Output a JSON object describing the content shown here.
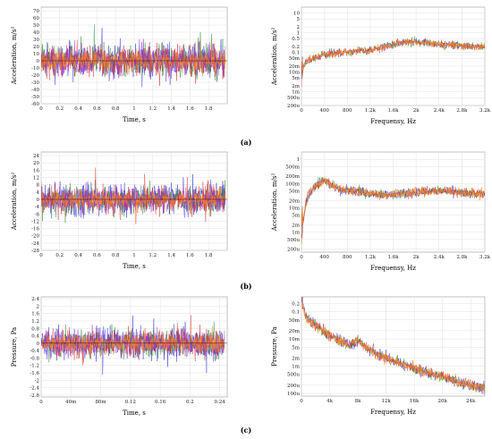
{
  "chart_data": [
    {
      "panel": "a",
      "type": "line",
      "signal": "time",
      "xlabel": "Time, s",
      "ylabel": "Acceleration, m/s²",
      "xlim": [
        0,
        2.0
      ],
      "ylim": [
        -60,
        75
      ],
      "xticks": [
        "0",
        "0.2",
        "0.4",
        "0.6",
        "0.8",
        "1",
        "1.2",
        "1.4",
        "1.6",
        "1.8"
      ],
      "yticks": [
        "70",
        "60",
        "50",
        "40",
        "30",
        "20",
        "10",
        "0",
        "-10",
        "-20",
        "-30",
        "-40",
        "-50",
        "-60"
      ],
      "series": [
        {
          "color": "#2b2bd6",
          "amplitude": 44
        },
        {
          "color": "#2e8b2e",
          "amplitude": 38
        },
        {
          "color": "#d62b2b",
          "amplitude": 40
        },
        {
          "color": "#9b30c8",
          "amplitude": 34
        },
        {
          "color": "#ff7f1e",
          "amplitude": 26
        }
      ]
    },
    {
      "panel": "a",
      "type": "line",
      "signal": "spectrum",
      "scale": "log",
      "xlabel": "Frequensy, Hz",
      "ylabel": "Acceleration, m/s²",
      "xlim": [
        0,
        3200
      ],
      "ylim": [
        0.0002,
        20
      ],
      "xticks": [
        "0",
        "400",
        "800",
        "1.2k",
        "1.6k",
        "2k",
        "2.4k",
        "2.8k",
        "3.2k"
      ],
      "yticks": [
        "10",
        "5",
        "2",
        "1",
        "0.5",
        "0.2",
        "0.1",
        "50m",
        "20m",
        "10m",
        "5m",
        "2m",
        "1m",
        "500u",
        "200u"
      ],
      "spectrum": [
        [
          0,
          0.002
        ],
        [
          30,
          0.02
        ],
        [
          100,
          0.04
        ],
        [
          200,
          0.05
        ],
        [
          400,
          0.08
        ],
        [
          600,
          0.09
        ],
        [
          800,
          0.1
        ],
        [
          1000,
          0.12
        ],
        [
          1200,
          0.13
        ],
        [
          1400,
          0.18
        ],
        [
          1600,
          0.26
        ],
        [
          1800,
          0.33
        ],
        [
          2000,
          0.36
        ],
        [
          2200,
          0.3
        ],
        [
          2400,
          0.26
        ],
        [
          2600,
          0.24
        ],
        [
          2800,
          0.22
        ],
        [
          3000,
          0.2
        ],
        [
          3200,
          0.18
        ]
      ],
      "series": [
        {
          "color": "#2b2bd6"
        },
        {
          "color": "#2e8b2e"
        },
        {
          "color": "#d62b2b"
        },
        {
          "color": "#ff7f1e"
        }
      ]
    },
    {
      "panel": "b",
      "type": "line",
      "signal": "time",
      "xlabel": "Time, s",
      "ylabel": "Acceleration, m/s²",
      "xlim": [
        0,
        2.0
      ],
      "ylim": [
        -28,
        26
      ],
      "xticks": [
        "0",
        "0.2",
        "0.4",
        "0.6",
        "0.8",
        "1",
        "1.2",
        "1.4",
        "1.6",
        "1.8"
      ],
      "yticks": [
        "24",
        "20",
        "16",
        "12",
        "8",
        "4",
        "0",
        "-4",
        "-8",
        "-12",
        "-16",
        "-20",
        "-24",
        "-28"
      ],
      "series": [
        {
          "color": "#2b2bd6",
          "amplitude": 16
        },
        {
          "color": "#2e8b2e",
          "amplitude": 13
        },
        {
          "color": "#d62b2b",
          "amplitude": 14
        },
        {
          "color": "#9b30c8",
          "amplitude": 11
        },
        {
          "color": "#ff7f1e",
          "amplitude": 8
        }
      ]
    },
    {
      "panel": "b",
      "type": "line",
      "signal": "spectrum",
      "scale": "log",
      "xlabel": "Frequensy, Hz",
      "ylabel": "Acceleration, m/s²",
      "xlim": [
        0,
        3200
      ],
      "ylim": [
        0.00015,
        2
      ],
      "xticks": [
        "0",
        "400",
        "800",
        "1.2k",
        "1.6k",
        "2k",
        "2.4k",
        "2.8k",
        "3.2k"
      ],
      "yticks": [
        "1",
        "500m",
        "200m",
        "100m",
        "50m",
        "20m",
        "10m",
        "5m",
        "2m",
        "1m",
        "500u",
        "200u"
      ],
      "spectrum": [
        [
          0,
          0.0003
        ],
        [
          30,
          0.003
        ],
        [
          100,
          0.03
        ],
        [
          200,
          0.06
        ],
        [
          300,
          0.1
        ],
        [
          400,
          0.14
        ],
        [
          500,
          0.09
        ],
        [
          700,
          0.06
        ],
        [
          900,
          0.05
        ],
        [
          1200,
          0.04
        ],
        [
          1500,
          0.035
        ],
        [
          1800,
          0.04
        ],
        [
          2100,
          0.045
        ],
        [
          2400,
          0.05
        ],
        [
          2700,
          0.045
        ],
        [
          3000,
          0.04
        ],
        [
          3200,
          0.035
        ]
      ],
      "series": [
        {
          "color": "#2b2bd6"
        },
        {
          "color": "#2e8b2e"
        },
        {
          "color": "#d62b2b"
        },
        {
          "color": "#ff7f1e"
        }
      ]
    },
    {
      "panel": "c",
      "type": "line",
      "signal": "time",
      "xlabel": "Time, s",
      "ylabel": "Pressure, Pa",
      "xlim": [
        0,
        0.25
      ],
      "ylim": [
        -2.9,
        2.5
      ],
      "xticks": [
        "0",
        "40m",
        "80m",
        "0.12",
        "0.16",
        "0.2",
        "0.24"
      ],
      "xtick_values": [
        0,
        0.04,
        0.08,
        0.12,
        0.16,
        0.2,
        0.24
      ],
      "yticks": [
        "2.4",
        "2",
        "1.6",
        "1.2",
        "0.8",
        "0.4",
        "0",
        "-0.4",
        "-0.8",
        "-1.2",
        "-1.6",
        "-2",
        "-2.4",
        "-2.8"
      ],
      "series": [
        {
          "color": "#2b2bd6",
          "amplitude": 1.5
        },
        {
          "color": "#2e8b2e",
          "amplitude": 1.3
        },
        {
          "color": "#d62b2b",
          "amplitude": 1.35
        },
        {
          "color": "#9b30c8",
          "amplitude": 1.1
        },
        {
          "color": "#ff7f1e",
          "amplitude": 0.8
        }
      ]
    },
    {
      "panel": "c",
      "type": "line",
      "signal": "spectrum",
      "scale": "log",
      "xlabel": "Frequensy, Hz",
      "ylabel": "Pressure, Pa",
      "xlim": [
        0,
        26000
      ],
      "ylim": [
        8e-05,
        0.35
      ],
      "xticks": [
        "0",
        "4k",
        "8k",
        "12k",
        "16k",
        "20k",
        "24k"
      ],
      "xtick_values": [
        0,
        4000,
        8000,
        12000,
        16000,
        20000,
        24000
      ],
      "yticks": [
        "0.2",
        "0.1",
        "50m",
        "20m",
        "10m",
        "5m",
        "2m",
        "1m",
        "500u",
        "200u",
        "100u"
      ],
      "spectrum": [
        [
          0,
          0.2
        ],
        [
          500,
          0.08
        ],
        [
          1500,
          0.04
        ],
        [
          3000,
          0.02
        ],
        [
          5000,
          0.01
        ],
        [
          7000,
          0.006
        ],
        [
          8200,
          0.009
        ],
        [
          9000,
          0.005
        ],
        [
          12000,
          0.002
        ],
        [
          16000,
          0.0008
        ],
        [
          20000,
          0.0004
        ],
        [
          24000,
          0.0002
        ],
        [
          26000,
          0.00015
        ]
      ],
      "series": [
        {
          "color": "#2b2bd6"
        },
        {
          "color": "#2e8b2e"
        },
        {
          "color": "#d62b2b"
        },
        {
          "color": "#ff7f1e"
        }
      ]
    }
  ],
  "captions": [
    "(a)",
    "(b)",
    "(c)"
  ]
}
